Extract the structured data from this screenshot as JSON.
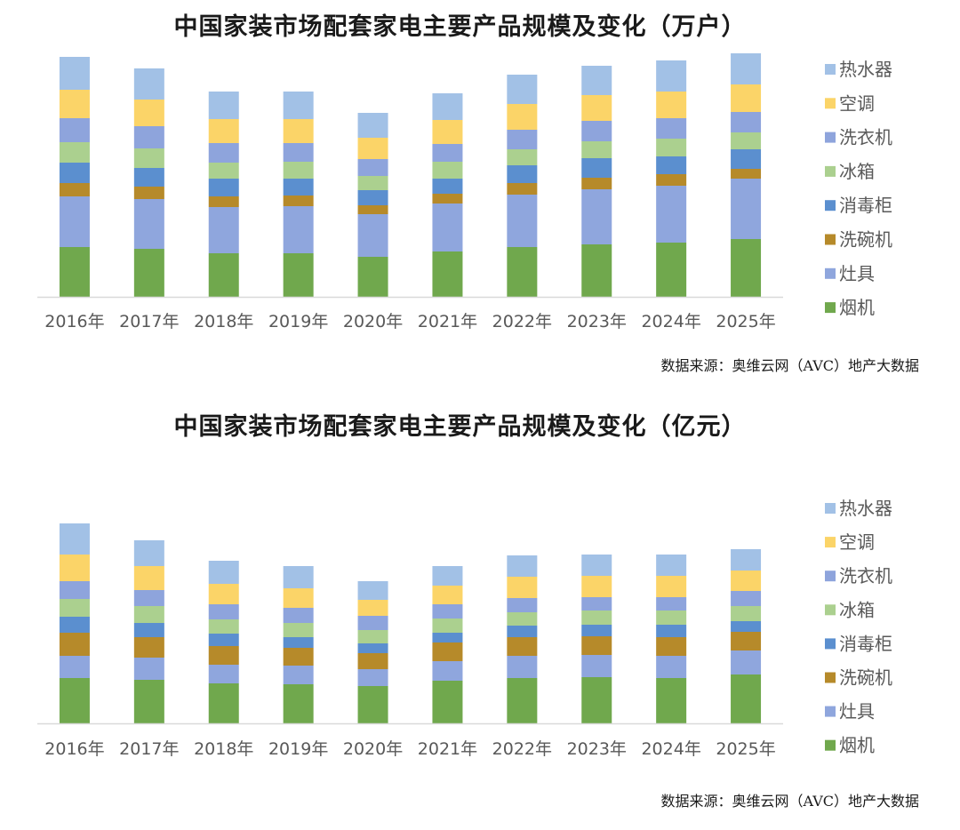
{
  "colors": {
    "烟机": "#70a84d",
    "灶具": "#8fa6dd",
    "洗碗机": "#b68a2a",
    "消毒柜": "#5b8fcf",
    "冰箱": "#abd08f",
    "洗衣机": "#8ea4dc",
    "空调": "#fbd468",
    "热水器": "#a2c1e6"
  },
  "chart_data": [
    {
      "type": "bar",
      "stacked": true,
      "title": "中国家装市场配套家电主要产品规模及变化（万户）",
      "source": "数据来源：奥维云网（AVC）地产大数据",
      "categories": [
        "2016年",
        "2017年",
        "2018年",
        "2019年",
        "2020年",
        "2021年",
        "2022年",
        "2023年",
        "2024年",
        "2025年"
      ],
      "legend_position": "right",
      "grid": false,
      "ylim": [
        0,
        270
      ],
      "series": [
        {
          "name": "烟机",
          "values": [
            56,
            54,
            49,
            49,
            45,
            51,
            56,
            59,
            61,
            65
          ]
        },
        {
          "name": "灶具",
          "values": [
            57,
            56,
            52,
            53,
            48,
            54,
            59,
            62,
            64,
            68
          ]
        },
        {
          "name": "洗碗机",
          "values": [
            15,
            14,
            12,
            12,
            10,
            11,
            13,
            13,
            13,
            11
          ]
        },
        {
          "name": "消毒柜",
          "values": [
            23,
            21,
            20,
            19,
            17,
            17,
            20,
            22,
            20,
            22
          ]
        },
        {
          "name": "冰箱",
          "values": [
            23,
            22,
            18,
            19,
            16,
            19,
            18,
            19,
            20,
            19
          ]
        },
        {
          "name": "洗衣机",
          "values": [
            27,
            25,
            22,
            21,
            19,
            20,
            22,
            23,
            23,
            23
          ]
        },
        {
          "name": "空调",
          "values": [
            32,
            30,
            27,
            27,
            24,
            27,
            29,
            29,
            30,
            31
          ]
        },
        {
          "name": "热水器",
          "values": [
            37,
            35,
            31,
            31,
            28,
            30,
            33,
            33,
            35,
            35
          ]
        }
      ],
      "legend": [
        "热水器",
        "空调",
        "洗衣机",
        "冰箱",
        "消毒柜",
        "洗碗机",
        "灶具",
        "烟机"
      ]
    },
    {
      "type": "bar",
      "stacked": true,
      "title": "中国家装市场配套家电主要产品规模及变化（亿元）",
      "source": "数据来源：奥维云网（AVC）地产大数据",
      "categories": [
        "2016年",
        "2017年",
        "2018年",
        "2019年",
        "2020年",
        "2021年",
        "2022年",
        "2023年",
        "2024年",
        "2025年"
      ],
      "legend_position": "right",
      "grid": false,
      "ylim": [
        0,
        240
      ],
      "series": [
        {
          "name": "烟机",
          "values": [
            51,
            49,
            45,
            44,
            42,
            48,
            51,
            52,
            51,
            55
          ]
        },
        {
          "name": "灶具",
          "values": [
            25,
            25,
            21,
            21,
            19,
            22,
            25,
            25,
            25,
            27
          ]
        },
        {
          "name": "洗碗机",
          "values": [
            26,
            23,
            21,
            20,
            18,
            21,
            21,
            21,
            21,
            21
          ]
        },
        {
          "name": "消毒柜",
          "values": [
            18,
            16,
            14,
            12,
            11,
            11,
            13,
            13,
            14,
            12
          ]
        },
        {
          "name": "冰箱",
          "values": [
            20,
            19,
            16,
            16,
            15,
            16,
            15,
            16,
            16,
            17
          ]
        },
        {
          "name": "洗衣机",
          "values": [
            20,
            18,
            17,
            17,
            16,
            16,
            16,
            15,
            15,
            17
          ]
        },
        {
          "name": "空调",
          "values": [
            30,
            27,
            23,
            22,
            18,
            21,
            24,
            24,
            24,
            23
          ]
        },
        {
          "name": "热水器",
          "values": [
            35,
            29,
            26,
            25,
            21,
            22,
            24,
            24,
            24,
            24
          ]
        }
      ],
      "legend": [
        "热水器",
        "空调",
        "洗衣机",
        "冰箱",
        "消毒柜",
        "洗碗机",
        "灶具",
        "烟机"
      ]
    }
  ]
}
